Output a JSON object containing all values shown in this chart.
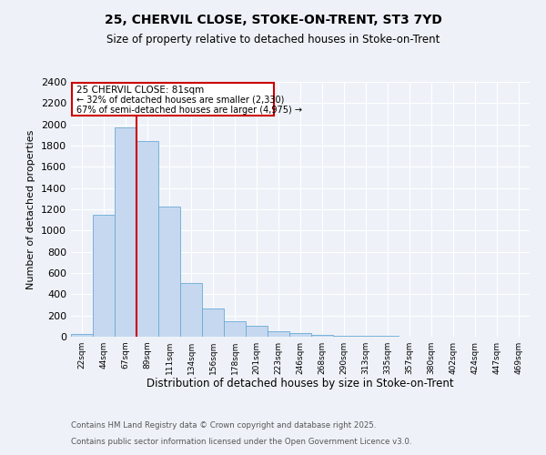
{
  "title_line1": "25, CHERVIL CLOSE, STOKE-ON-TRENT, ST3 7YD",
  "title_line2": "Size of property relative to detached houses in Stoke-on-Trent",
  "xlabel": "Distribution of detached houses by size in Stoke-on-Trent",
  "ylabel": "Number of detached properties",
  "categories": [
    "22sqm",
    "44sqm",
    "67sqm",
    "89sqm",
    "111sqm",
    "134sqm",
    "156sqm",
    "178sqm",
    "201sqm",
    "223sqm",
    "246sqm",
    "268sqm",
    "290sqm",
    "313sqm",
    "335sqm",
    "357sqm",
    "380sqm",
    "402sqm",
    "424sqm",
    "447sqm",
    "469sqm"
  ],
  "values": [
    30,
    1150,
    1970,
    1845,
    1230,
    510,
    270,
    150,
    100,
    55,
    35,
    20,
    12,
    8,
    5,
    3,
    2,
    1,
    1,
    1,
    0
  ],
  "bar_color": "#c5d8f0",
  "bar_edge_color": "#6aaad4",
  "vline_color": "#cc0000",
  "vline_x": 2.5,
  "annotation_title": "25 CHERVIL CLOSE: 81sqm",
  "annotation_line1": "← 32% of detached houses are smaller (2,330)",
  "annotation_line2": "67% of semi-detached houses are larger (4,975) →",
  "annotation_box_color": "#cc0000",
  "ylim": [
    0,
    2400
  ],
  "yticks": [
    0,
    200,
    400,
    600,
    800,
    1000,
    1200,
    1400,
    1600,
    1800,
    2000,
    2200,
    2400
  ],
  "footer_line1": "Contains HM Land Registry data © Crown copyright and database right 2025.",
  "footer_line2": "Contains public sector information licensed under the Open Government Licence v3.0.",
  "background_color": "#eef2f8",
  "grid_color": "#ffffff"
}
